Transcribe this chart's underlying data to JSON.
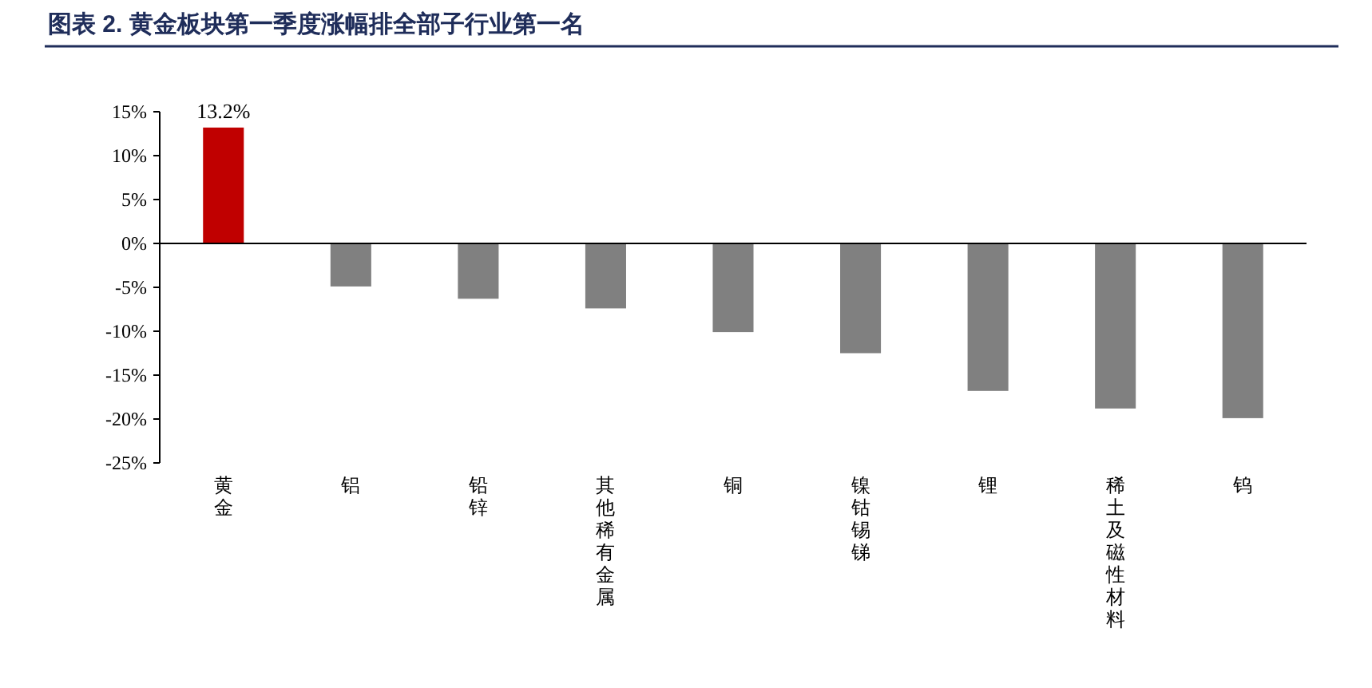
{
  "chart_data": {
    "type": "bar",
    "title": "图表 2.  黄金板块第一季度涨幅排全部子行业第一名",
    "categories": [
      "黄金",
      "铝",
      "铅锌",
      "其他稀有金属",
      "铜",
      "镍钴锡锑",
      "锂",
      "稀土及磁性材料",
      "钨"
    ],
    "values": [
      13.2,
      -4.9,
      -6.3,
      -7.4,
      -10.1,
      -12.5,
      -16.8,
      -18.8,
      -19.9
    ],
    "value_labels": [
      "13.2%",
      null,
      null,
      null,
      null,
      null,
      null,
      null,
      null
    ],
    "colors": [
      "#c00000",
      "#808080",
      "#808080",
      "#808080",
      "#808080",
      "#808080",
      "#808080",
      "#808080",
      "#808080"
    ],
    "ylim": [
      -25,
      15
    ],
    "yticks": [
      {
        "value": 15,
        "label": "15%"
      },
      {
        "value": 10,
        "label": "10%"
      },
      {
        "value": 5,
        "label": "5%"
      },
      {
        "value": 0,
        "label": "0%"
      },
      {
        "value": -5,
        "label": "-5%"
      },
      {
        "value": -10,
        "label": "-10%"
      },
      {
        "value": -15,
        "label": "-15%"
      },
      {
        "value": -20,
        "label": "-20%"
      },
      {
        "value": -25,
        "label": "-25%"
      }
    ],
    "marker": "none"
  }
}
